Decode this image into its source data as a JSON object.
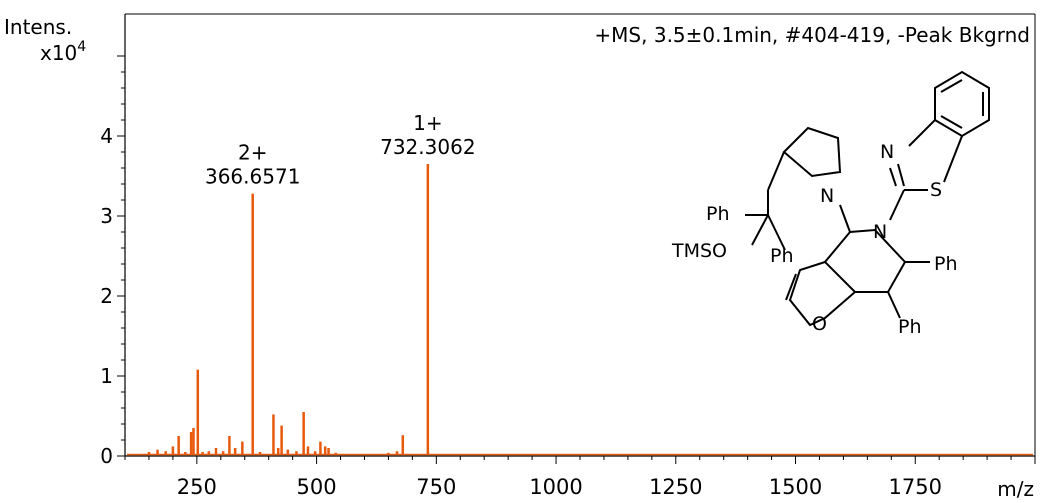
{
  "chart_data": {
    "type": "bar",
    "title": "+MS, 3.5±0.1min, #404-419, -Peak Bkgrnd",
    "ylabel": "Intens.",
    "yscale_label": "x10",
    "yscale_exp": "4",
    "xlabel": "m/z",
    "xlim": [
      100,
      2000
    ],
    "ylim": [
      0,
      5
    ],
    "xticks": [
      250,
      500,
      750,
      1000,
      1250,
      1500,
      1750
    ],
    "yticks": [
      0,
      1,
      2,
      3,
      4
    ],
    "bar_color": "#e8590c",
    "peaks": [
      {
        "x": 150,
        "y": 0.05
      },
      {
        "x": 168,
        "y": 0.08
      },
      {
        "x": 185,
        "y": 0.06
      },
      {
        "x": 200,
        "y": 0.12
      },
      {
        "x": 212,
        "y": 0.25
      },
      {
        "x": 226,
        "y": 0.05
      },
      {
        "x": 238,
        "y": 0.3
      },
      {
        "x": 243,
        "y": 0.35
      },
      {
        "x": 252,
        "y": 1.08
      },
      {
        "x": 262,
        "y": 0.05
      },
      {
        "x": 275,
        "y": 0.06
      },
      {
        "x": 290,
        "y": 0.1
      },
      {
        "x": 305,
        "y": 0.06
      },
      {
        "x": 318,
        "y": 0.25
      },
      {
        "x": 330,
        "y": 0.1
      },
      {
        "x": 345,
        "y": 0.18
      },
      {
        "x": 366.6571,
        "y": 3.28
      },
      {
        "x": 382,
        "y": 0.05
      },
      {
        "x": 410,
        "y": 0.52
      },
      {
        "x": 420,
        "y": 0.1
      },
      {
        "x": 427,
        "y": 0.38
      },
      {
        "x": 440,
        "y": 0.08
      },
      {
        "x": 458,
        "y": 0.06
      },
      {
        "x": 473,
        "y": 0.55
      },
      {
        "x": 482,
        "y": 0.12
      },
      {
        "x": 497,
        "y": 0.06
      },
      {
        "x": 508,
        "y": 0.18
      },
      {
        "x": 518,
        "y": 0.12
      },
      {
        "x": 525,
        "y": 0.1
      },
      {
        "x": 540,
        "y": 0.04
      },
      {
        "x": 650,
        "y": 0.04
      },
      {
        "x": 668,
        "y": 0.06
      },
      {
        "x": 680,
        "y": 0.26
      },
      {
        "x": 732.3062,
        "y": 3.65
      }
    ],
    "annotations": [
      {
        "charge": "2+",
        "mz": "366.6571",
        "x": 366.6571,
        "y": 3.28
      },
      {
        "charge": "1+",
        "mz": "732.3062",
        "x": 732.3062,
        "y": 3.65
      }
    ],
    "grid": false,
    "legend": "none"
  },
  "structure": {
    "labels": {
      "n_benzothiazole": "N",
      "s_benzothiazole": "S",
      "n_pyrrolidine": "N",
      "n_ring": "N",
      "o_furan": "O",
      "ph_top": "Ph",
      "ph_mid": "Ph",
      "ph_ring1": "Ph",
      "ph_ring2": "Ph",
      "tmso": "TMSO"
    }
  }
}
